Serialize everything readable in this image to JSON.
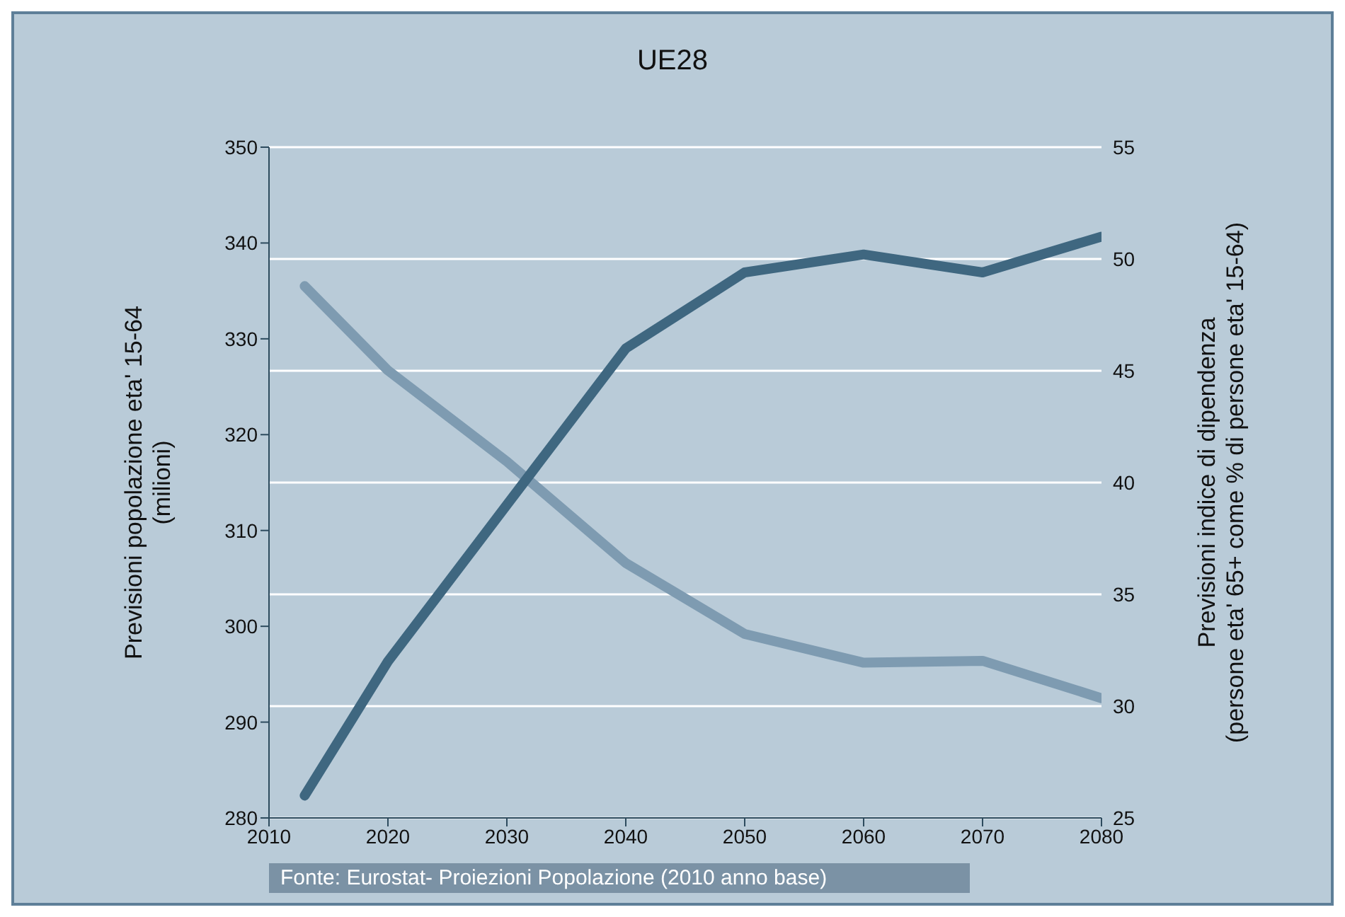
{
  "chart_data": {
    "type": "line",
    "title": "UE28",
    "ylabel": "Previsioni popolazione eta' 15-64\n(milioni)",
    "y2label": "Previsioni indice di dipendenza\n(persone eta' 65+ come % di persone eta' 15-64)",
    "x": [
      2013,
      2020,
      2030,
      2040,
      2050,
      2060,
      2070,
      2080
    ],
    "series": [
      {
        "color": "#7e9bb1",
        "values": [
          335.5,
          326.7,
          317.2,
          306.6,
          299.2,
          296.2,
          296.4,
          292.5
        ]
      },
      {
        "color": "#3f6780",
        "axis": "y2",
        "values": [
          26,
          32,
          39,
          46,
          49.4,
          50.2,
          49.4,
          51
        ]
      }
    ],
    "xlim": [
      2010,
      2080
    ],
    "xticks": [
      2010,
      2020,
      2030,
      2040,
      2050,
      2060,
      2070,
      2080
    ],
    "ylim": [
      280,
      350
    ],
    "yticks": [
      280,
      290,
      300,
      310,
      320,
      330,
      340,
      350
    ],
    "y2lim": [
      25,
      55
    ],
    "y2ticks": [
      25,
      30,
      35,
      40,
      45,
      50,
      55
    ],
    "grid": "y",
    "marker": "none",
    "line_style": "solid",
    "annotations": [
      "Fonte: Eurostat- Proiezioni Popolazione (2010 anno base)"
    ]
  }
}
